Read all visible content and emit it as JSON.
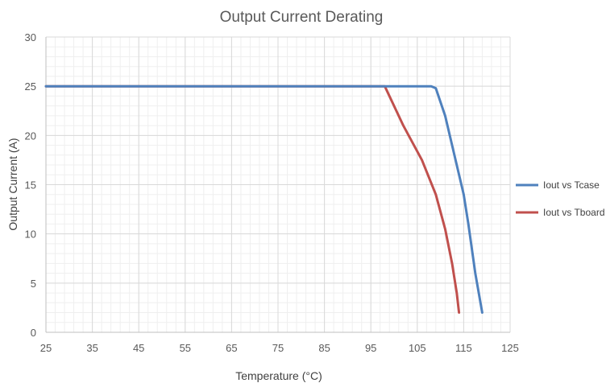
{
  "chart_data": {
    "type": "line",
    "title": "Output Current Derating",
    "xlabel": "Temperature (°C)",
    "ylabel": "Output Current (A)",
    "xlim": [
      25,
      125
    ],
    "ylim": [
      0,
      30
    ],
    "x_ticks": [
      25,
      35,
      45,
      55,
      65,
      75,
      85,
      95,
      105,
      115,
      125
    ],
    "y_ticks": [
      0,
      5,
      10,
      15,
      20,
      25,
      30
    ],
    "x_tick_labels": [
      "25",
      "35",
      "45",
      "55",
      "65",
      "75",
      "85",
      "95",
      "105",
      "115",
      "125"
    ],
    "y_tick_labels": [
      "0",
      "5",
      "10",
      "15",
      "20",
      "25",
      "30"
    ],
    "grid": true,
    "legend_position": "right",
    "series": [
      {
        "name": "Iout vs Tcase",
        "color": "#4f81bd",
        "points": [
          [
            25,
            25
          ],
          [
            108,
            25
          ],
          [
            109,
            24.8
          ],
          [
            111,
            22
          ],
          [
            113,
            18
          ],
          [
            115,
            14
          ],
          [
            116,
            11
          ],
          [
            117.5,
            6
          ],
          [
            119,
            2
          ]
        ]
      },
      {
        "name": "Iout vs Tboard",
        "color": "#c0504d",
        "points": [
          [
            25,
            25
          ],
          [
            98,
            25
          ],
          [
            102,
            21
          ],
          [
            106,
            17.5
          ],
          [
            109,
            14
          ],
          [
            111,
            10.5
          ],
          [
            112.5,
            7
          ],
          [
            113.5,
            4
          ],
          [
            114,
            2
          ]
        ]
      }
    ]
  }
}
